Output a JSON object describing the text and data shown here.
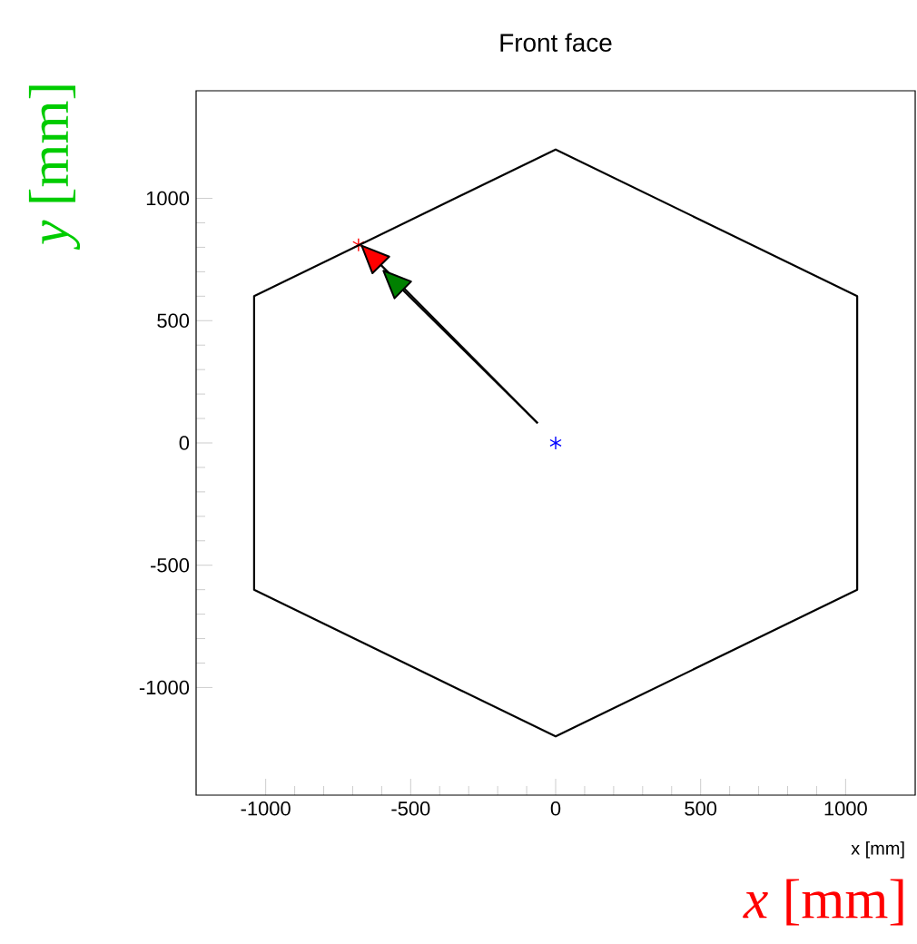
{
  "chart_data": {
    "type": "scatter",
    "title": "Front face",
    "xlabel": "x [mm]",
    "annotations": [
      "*x* [mm]",
      "*y* [mm]"
    ],
    "xlim": [
      -1240,
      1240
    ],
    "ylim": [
      -1440,
      1440
    ],
    "xticks": [
      -1000,
      -500,
      0,
      500,
      1000
    ],
    "yticks": [
      -1000,
      -500,
      0,
      500,
      1000
    ],
    "marker": "cross",
    "series": [
      {
        "color": "#ff0000",
        "x": [
          -680
        ],
        "values": [
          810
        ]
      },
      {
        "color": "#0000ff",
        "x": [
          0
        ],
        "values": [
          0
        ]
      }
    ]
  }
}
